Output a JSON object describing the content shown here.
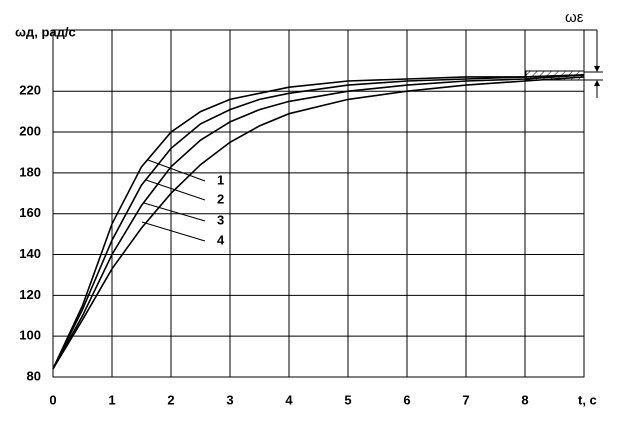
{
  "chart_data": {
    "type": "line",
    "ylabel": "ωд, рад/с",
    "xlabel": "t, с",
    "annotation": "ωε",
    "x": [
      0,
      0.5,
      1,
      1.5,
      2,
      2.5,
      3,
      3.5,
      4,
      5,
      6,
      7,
      8,
      9
    ],
    "series": [
      {
        "name": "1",
        "color": "#000000",
        "values": [
          84,
          115,
          155,
          183,
          200,
          210,
          216,
          219,
          222,
          225,
          226,
          227,
          227,
          228
        ]
      },
      {
        "name": "2",
        "color": "#000000",
        "values": [
          84,
          113,
          147,
          174,
          192,
          204,
          211,
          216,
          219,
          223,
          225,
          226,
          227,
          228
        ]
      },
      {
        "name": "3",
        "color": "#000000",
        "values": [
          84,
          110,
          140,
          164,
          183,
          196,
          205,
          211,
          215,
          220,
          223,
          225,
          226,
          228
        ]
      },
      {
        "name": "4",
        "color": "#000000",
        "values": [
          84,
          108,
          133,
          153,
          170,
          184,
          195,
          203,
          209,
          216,
          220,
          223,
          225,
          227
        ]
      }
    ],
    "xlim": [
      0,
      9
    ],
    "ylim": [
      80,
      250
    ],
    "xticks": [
      0,
      1,
      2,
      3,
      4,
      5,
      6,
      7,
      8
    ],
    "yticks": [
      80,
      100,
      120,
      140,
      160,
      180,
      200,
      220
    ],
    "grid": true
  }
}
